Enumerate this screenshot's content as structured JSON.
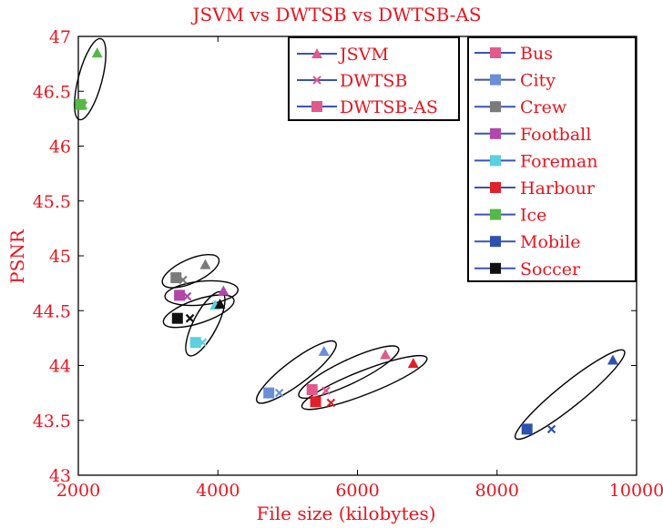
{
  "chart_data": {
    "type": "scatter",
    "title": "JSVM vs DWTSB vs DWTSB-AS",
    "xlabel": "File size (kilobytes)",
    "ylabel": "PSNR",
    "xlim": [
      2000,
      10000
    ],
    "ylim": [
      43,
      47
    ],
    "xticks": [
      "2000",
      "4000",
      "6000",
      "8000",
      "10000"
    ],
    "yticks": [
      "43",
      "43.5",
      "44",
      "44.5",
      "45",
      "45.5",
      "46",
      "46.5",
      "47"
    ],
    "grid": false,
    "methods_legend": {
      "placement": "top-center",
      "entries": [
        {
          "name": "JSVM",
          "marker": "triangle"
        },
        {
          "name": "DWTSB",
          "marker": "x"
        },
        {
          "name": "DWTSB-AS",
          "marker": "square"
        }
      ]
    },
    "sequences_legend": {
      "placement": "top-right",
      "entries": [
        {
          "name": "Bus",
          "color": "#e05a8c"
        },
        {
          "name": "City",
          "color": "#6b8fd6"
        },
        {
          "name": "Crew",
          "color": "#7a7a7a"
        },
        {
          "name": "Football",
          "color": "#b048a8"
        },
        {
          "name": "Foreman",
          "color": "#5ccfe0"
        },
        {
          "name": "Harbour",
          "color": "#e0202a"
        },
        {
          "name": "Ice",
          "color": "#55b848"
        },
        {
          "name": "Mobile",
          "color": "#3050b0"
        },
        {
          "name": "Soccer",
          "color": "#111111"
        }
      ]
    },
    "series": [
      {
        "name": "Bus",
        "color": "#e05a8c",
        "points": [
          {
            "method": "JSVM",
            "x": 6400,
            "y": 44.1
          },
          {
            "method": "DWTSB",
            "x": 5550,
            "y": 43.77
          },
          {
            "method": "DWTSB-AS",
            "x": 5350,
            "y": 43.78
          }
        ]
      },
      {
        "name": "City",
        "color": "#6b8fd6",
        "points": [
          {
            "method": "JSVM",
            "x": 5520,
            "y": 44.13
          },
          {
            "method": "DWTSB",
            "x": 4880,
            "y": 43.75
          },
          {
            "method": "DWTSB-AS",
            "x": 4730,
            "y": 43.75
          }
        ]
      },
      {
        "name": "Crew",
        "color": "#7a7a7a",
        "points": [
          {
            "method": "JSVM",
            "x": 3820,
            "y": 44.92
          },
          {
            "method": "DWTSB",
            "x": 3500,
            "y": 44.78
          },
          {
            "method": "DWTSB-AS",
            "x": 3400,
            "y": 44.8
          }
        ]
      },
      {
        "name": "Football",
        "color": "#b048a8",
        "points": [
          {
            "method": "JSVM",
            "x": 4080,
            "y": 44.68
          },
          {
            "method": "DWTSB",
            "x": 3560,
            "y": 44.63
          },
          {
            "method": "DWTSB-AS",
            "x": 3450,
            "y": 44.64
          }
        ]
      },
      {
        "name": "Foreman",
        "color": "#5ccfe0",
        "points": [
          {
            "method": "JSVM",
            "x": 3960,
            "y": 44.55
          },
          {
            "method": "DWTSB",
            "x": 3780,
            "y": 44.21
          },
          {
            "method": "DWTSB-AS",
            "x": 3680,
            "y": 44.21
          }
        ]
      },
      {
        "name": "Harbour",
        "color": "#e0202a",
        "points": [
          {
            "method": "JSVM",
            "x": 6800,
            "y": 44.02
          },
          {
            "method": "DWTSB",
            "x": 5620,
            "y": 43.66
          },
          {
            "method": "DWTSB-AS",
            "x": 5400,
            "y": 43.67
          }
        ]
      },
      {
        "name": "Ice",
        "color": "#55b848",
        "points": [
          {
            "method": "JSVM",
            "x": 2270,
            "y": 46.85
          },
          {
            "method": "DWTSB",
            "x": 2070,
            "y": 46.37
          },
          {
            "method": "DWTSB-AS",
            "x": 2030,
            "y": 46.38
          }
        ]
      },
      {
        "name": "Mobile",
        "color": "#3050b0",
        "points": [
          {
            "method": "JSVM",
            "x": 9660,
            "y": 44.05
          },
          {
            "method": "DWTSB",
            "x": 8780,
            "y": 43.42
          },
          {
            "method": "DWTSB-AS",
            "x": 8430,
            "y": 43.42
          }
        ]
      },
      {
        "name": "Soccer",
        "color": "#111111",
        "points": [
          {
            "method": "JSVM",
            "x": 4030,
            "y": 44.56
          },
          {
            "method": "DWTSB",
            "x": 3600,
            "y": 44.43
          },
          {
            "method": "DWTSB-AS",
            "x": 3420,
            "y": 44.43
          }
        ]
      }
    ]
  }
}
